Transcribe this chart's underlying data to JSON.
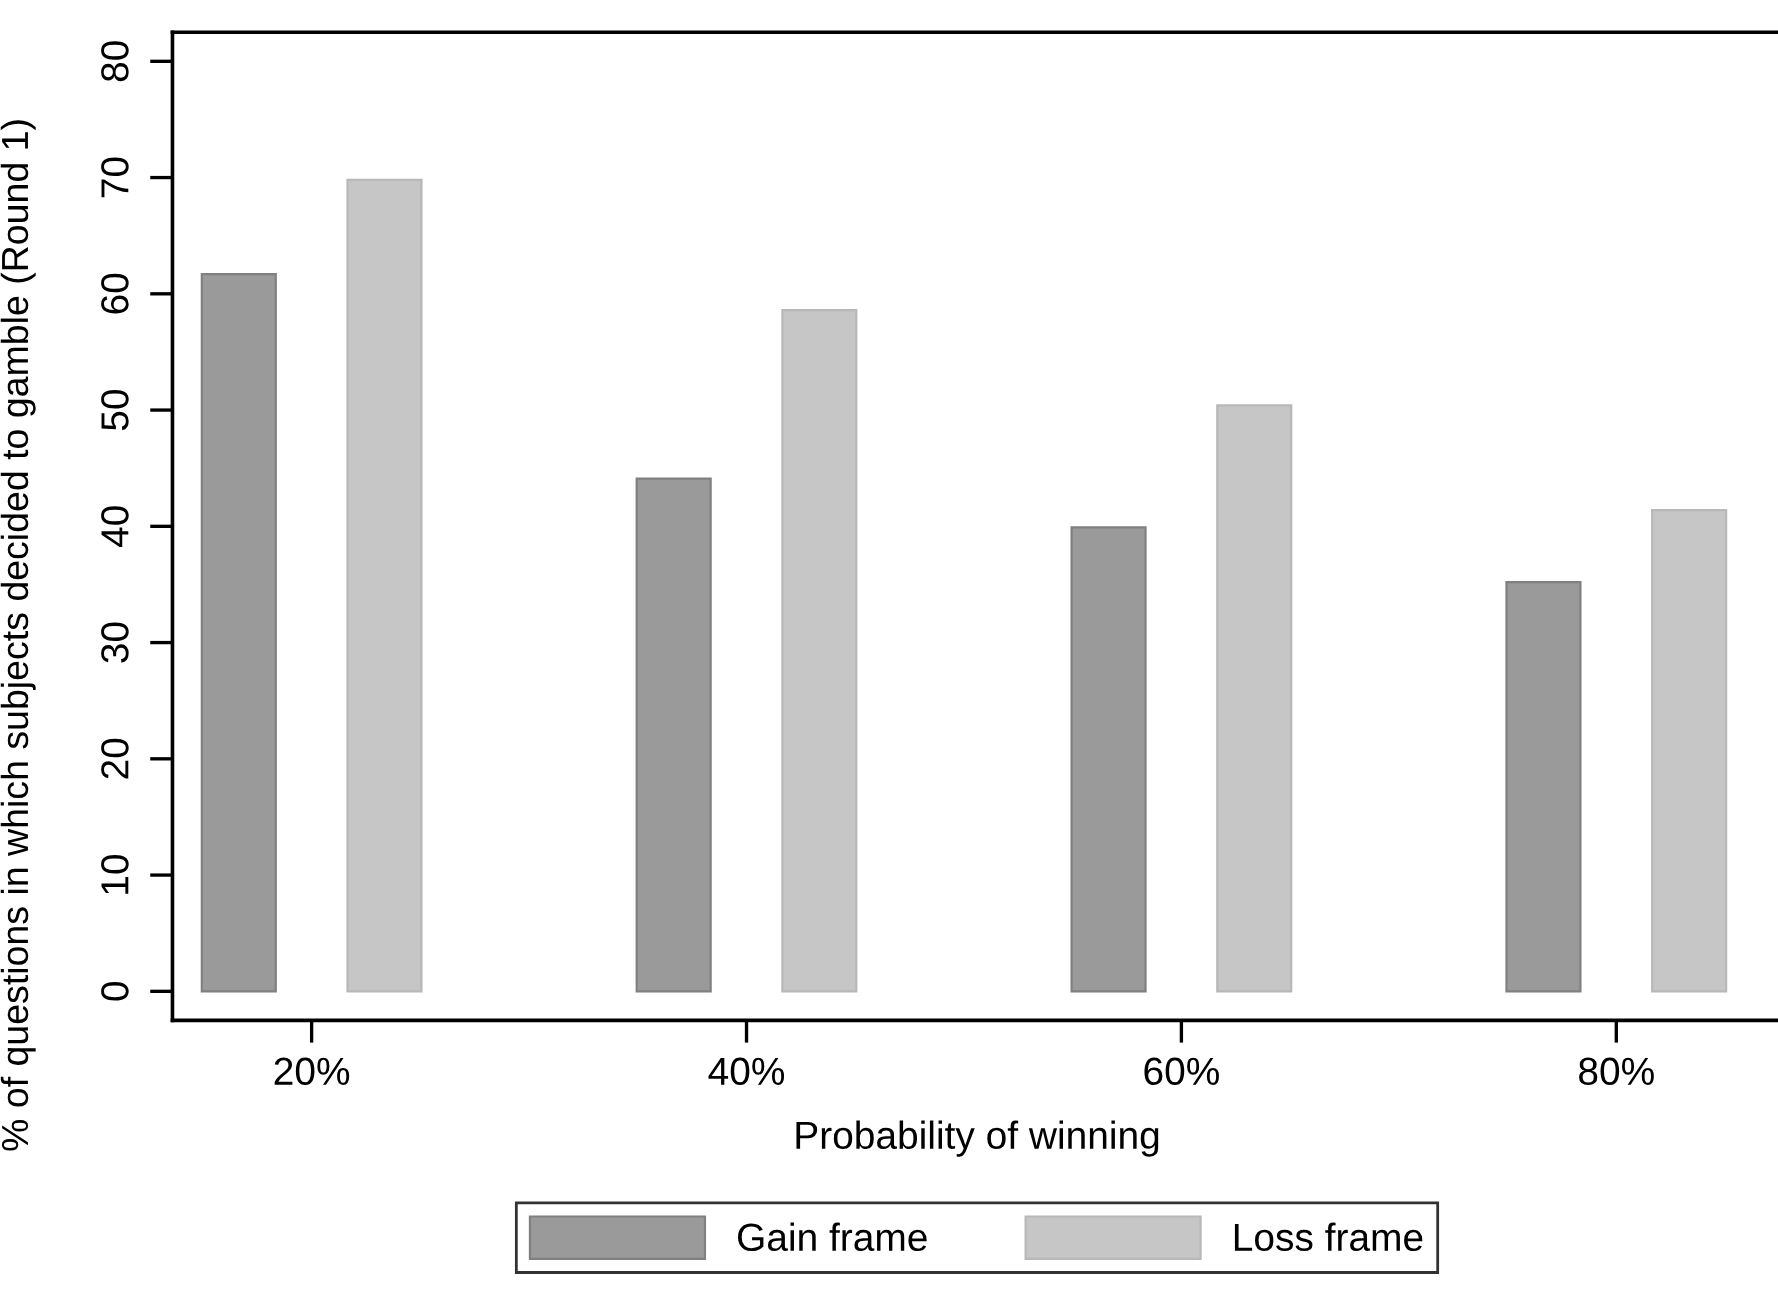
{
  "chart_data": {
    "type": "bar",
    "xlabel": "Probability of winning",
    "ylabel": "% of questions in which subjects decided to gamble (Round 1)",
    "categories": [
      "20%",
      "40%",
      "60%",
      "80%"
    ],
    "series": [
      {
        "name": "Gain frame",
        "color": "#9a9a9a",
        "values": [
          61.7,
          44.1,
          39.9,
          35.2
        ]
      },
      {
        "name": "Loss frame",
        "color": "#c5c6c5",
        "values": [
          69.8,
          58.6,
          50.4,
          41.4
        ]
      }
    ],
    "ylim": [
      -2.5,
      82.5
    ],
    "yticks": [
      0,
      10,
      20,
      30,
      40,
      50,
      60,
      70,
      80
    ],
    "grid": false,
    "legend": "bottom"
  }
}
